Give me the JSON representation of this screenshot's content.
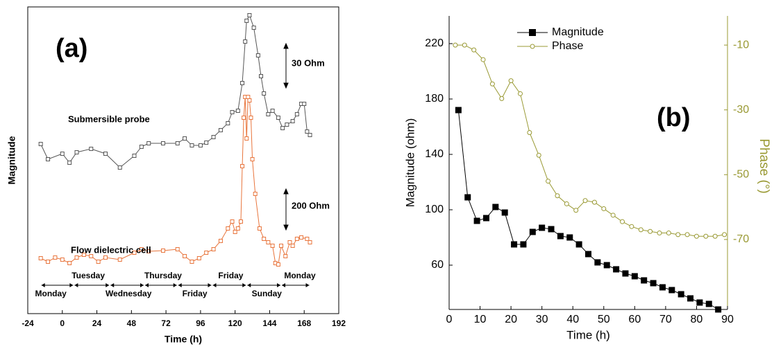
{
  "chart_data": [
    {
      "type": "line",
      "label": "(a)",
      "x_label": "Time (h)",
      "y_label": "Magnitude",
      "xlim": [
        -24,
        192
      ],
      "xticks": [
        -24,
        0,
        24,
        48,
        72,
        96,
        120,
        144,
        168,
        192
      ],
      "ylim": [
        0,
        443
      ],
      "scale_bars": [
        "30 Ohm",
        "200 Ohm"
      ],
      "day_labels_upper": [
        "Tuesday",
        "Thursday",
        "Friday",
        "Monday"
      ],
      "day_labels_lower": [
        "Monday",
        "Wednesday",
        "Friday",
        "Sunday"
      ],
      "series": [
        {
          "name": "Submersible probe",
          "color": "#555555",
          "x": [
            -15,
            -10,
            0,
            5,
            10,
            20,
            30,
            40,
            50,
            55,
            60,
            70,
            80,
            85,
            90,
            96,
            100,
            105,
            110,
            115,
            118,
            122,
            125,
            127,
            128,
            130,
            133,
            136,
            138,
            140,
            143,
            146,
            150,
            153,
            156,
            160,
            163,
            166,
            168,
            170,
            172
          ],
          "values": [
            245,
            223,
            231,
            218,
            233,
            238,
            231,
            211,
            228,
            241,
            246,
            246,
            246,
            253,
            243,
            243,
            247,
            255,
            265,
            275,
            291,
            293,
            333,
            393,
            423,
            431,
            413,
            373,
            343,
            318,
            288,
            293,
            283,
            268,
            273,
            278,
            288,
            303,
            303,
            263,
            258
          ]
        },
        {
          "name": "Flow dielectric cell",
          "color": "#e8743b",
          "x": [
            -15,
            -10,
            -5,
            0,
            5,
            10,
            15,
            20,
            25,
            30,
            40,
            50,
            55,
            60,
            70,
            80,
            85,
            90,
            95,
            100,
            105,
            110,
            115,
            118,
            120,
            122,
            124,
            125,
            126,
            127,
            128,
            129,
            130,
            131,
            132,
            134,
            137,
            140,
            143,
            146,
            148,
            150,
            152,
            155,
            158,
            160,
            163,
            166,
            170,
            172
          ],
          "values": [
            80,
            75,
            81,
            78,
            73,
            81,
            85,
            83,
            75,
            81,
            78,
            88,
            93,
            90,
            91,
            93,
            83,
            75,
            80,
            88,
            93,
            105,
            123,
            133,
            118,
            123,
            133,
            213,
            283,
            313,
            253,
            313,
            308,
            283,
            223,
            173,
            123,
            108,
            103,
            98,
            73,
            71,
            98,
            83,
            103,
            98,
            108,
            110,
            108,
            103
          ]
        }
      ]
    },
    {
      "type": "line",
      "label": "(b)",
      "x_label": "Time (h)",
      "y_label": "Magnitude (ohm)",
      "y2_label": "Phase (°)",
      "xlim": [
        0,
        90
      ],
      "xticks": [
        0,
        10,
        20,
        30,
        40,
        50,
        60,
        70,
        80,
        90
      ],
      "ylim": [
        28,
        240
      ],
      "yticks": [
        60,
        100,
        140,
        180,
        220
      ],
      "y2lim": [
        -91.6,
        -1
      ],
      "y2ticks": [
        -70,
        -50,
        -30,
        -10
      ],
      "legend": "upper left",
      "series": [
        {
          "name": "Magnitude",
          "color": "#000000",
          "marker": "square",
          "x": [
            3,
            6,
            9,
            12,
            15,
            18,
            21,
            24,
            27,
            30,
            33,
            36,
            39,
            42,
            45,
            48,
            51,
            54,
            57,
            60,
            63,
            66,
            69,
            72,
            75,
            78,
            81,
            84,
            87
          ],
          "values": [
            172,
            109,
            92,
            94,
            102,
            98,
            75,
            75,
            84,
            87,
            86,
            81,
            80,
            75,
            68,
            62,
            60,
            57,
            54,
            52,
            49,
            47,
            44,
            42,
            39,
            36,
            33,
            32,
            28
          ]
        },
        {
          "name": "Phase",
          "color": "#999933",
          "marker": "circle",
          "axis": "y2",
          "x": [
            2,
            5,
            8,
            11,
            14,
            17,
            20,
            23,
            26,
            29,
            32,
            35,
            38,
            41,
            44,
            47,
            50,
            53,
            56,
            59,
            62,
            65,
            68,
            71,
            74,
            77,
            80,
            83,
            86,
            89
          ],
          "values": [
            -10,
            -10,
            -11.5,
            -14.5,
            -22,
            -26.5,
            -21,
            -25,
            -37,
            -44,
            -52,
            -56.5,
            -59,
            -61,
            -58,
            -58.5,
            -60.5,
            -62.5,
            -64.5,
            -66,
            -67,
            -67.5,
            -68,
            -68,
            -68.5,
            -68.5,
            -69,
            -69,
            -69,
            -68.5
          ]
        }
      ]
    }
  ]
}
